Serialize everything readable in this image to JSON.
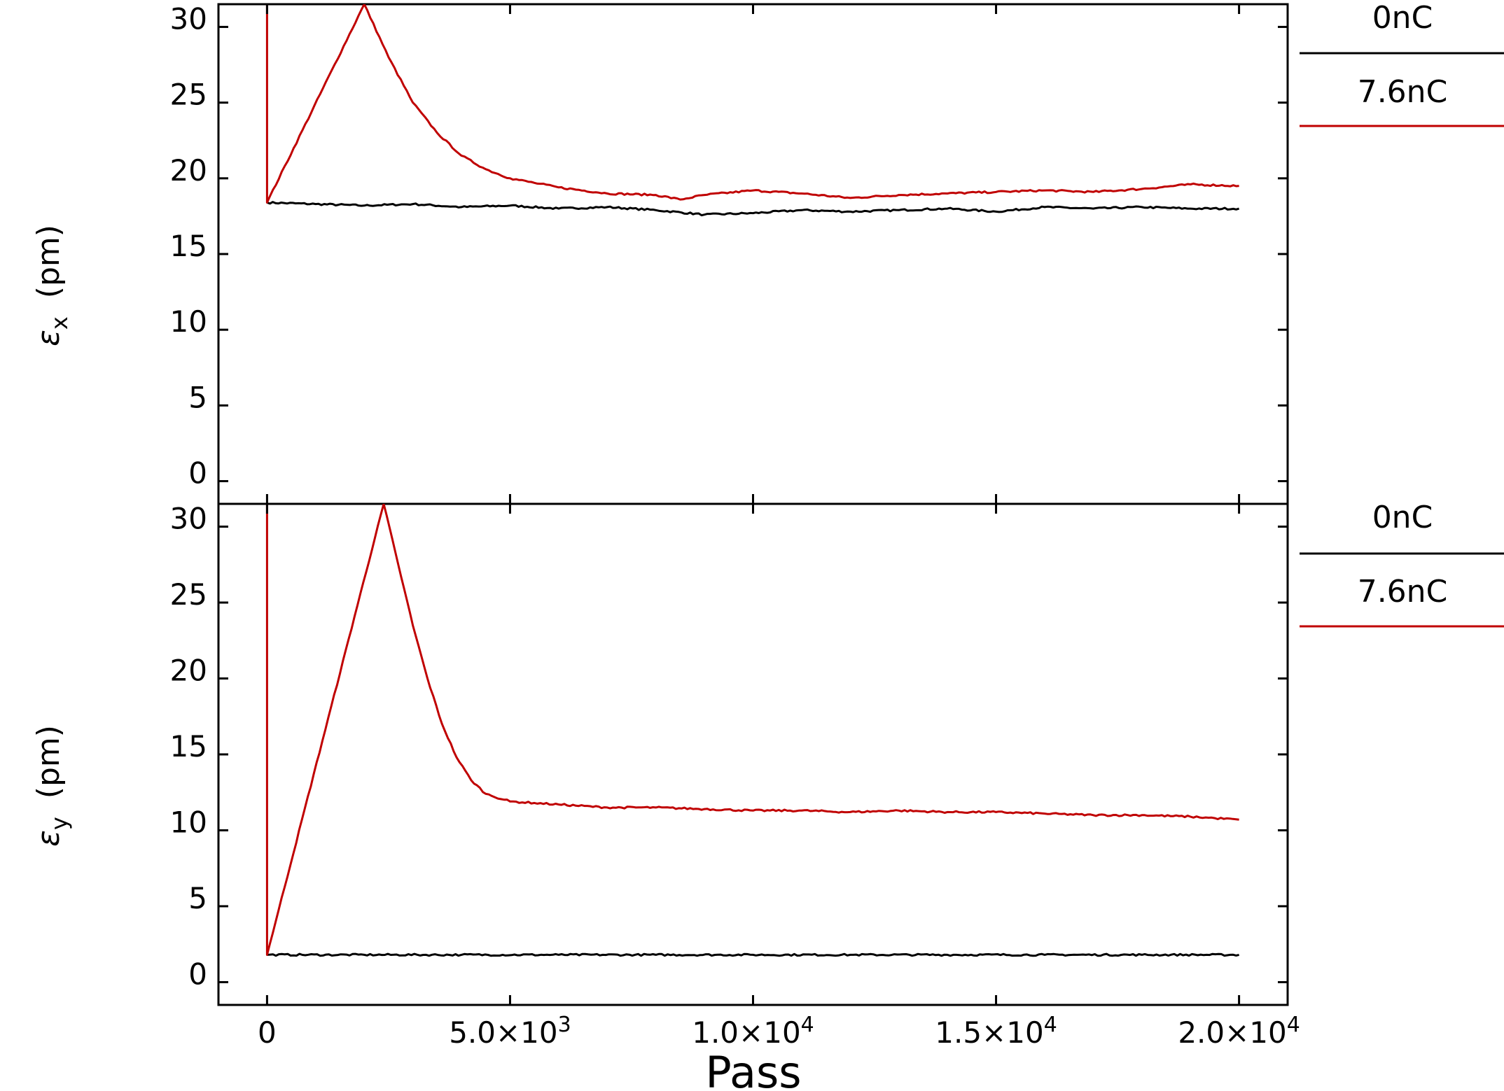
{
  "chart_data": [
    {
      "type": "line",
      "panel": "top",
      "title": "",
      "ylabel": "ε",
      "ylabel_sub": "x",
      "ylabel_unit": "(pm)",
      "xlim": [
        -1000,
        21000
      ],
      "ylim": [
        -1.5,
        31.5
      ],
      "yticks": [
        0,
        5,
        10,
        15,
        20,
        25,
        30
      ],
      "ytick_labels": [
        "0",
        "5",
        "10",
        "15",
        "20",
        "25",
        "30"
      ],
      "grid": false,
      "legend_position": "outside-right",
      "series": [
        {
          "name": "0nC",
          "color": "#000000",
          "x": [
            0,
            1000,
            2000,
            3000,
            4000,
            5000,
            6000,
            7000,
            8000,
            9000,
            10000,
            11000,
            12000,
            13000,
            14000,
            15000,
            16000,
            17000,
            18000,
            19000,
            20000
          ],
          "y": [
            18.4,
            18.3,
            18.2,
            18.3,
            18.1,
            18.2,
            18.0,
            18.1,
            17.9,
            17.6,
            17.7,
            17.9,
            17.8,
            17.9,
            18.0,
            17.8,
            18.1,
            18.0,
            18.1,
            18.0,
            18.0
          ]
        },
        {
          "name": "7.6nC",
          "color": "#c00000",
          "x": [
            0,
            0,
            2000,
            2500,
            3000,
            3500,
            4000,
            4500,
            5000,
            5500,
            6000,
            7000,
            8000,
            8500,
            9000,
            10000,
            11000,
            12000,
            13000,
            14000,
            15000,
            16000,
            17000,
            18000,
            19000,
            20000
          ],
          "y": [
            31.5,
            18.4,
            31.5,
            28.0,
            25.0,
            23.0,
            21.5,
            20.6,
            20.0,
            19.7,
            19.4,
            19.0,
            18.9,
            18.6,
            18.9,
            19.2,
            19.0,
            18.7,
            18.9,
            19.0,
            19.1,
            19.2,
            19.1,
            19.3,
            19.6,
            19.5
          ]
        }
      ]
    },
    {
      "type": "line",
      "panel": "bottom",
      "title": "",
      "xlabel": "Pass",
      "ylabel": "ε",
      "ylabel_sub": "y",
      "ylabel_unit": "(pm)",
      "xlim": [
        -1000,
        21000
      ],
      "ylim": [
        -1.5,
        31.5
      ],
      "xticks": [
        0,
        5000,
        10000,
        15000,
        20000
      ],
      "xtick_labels": [
        {
          "mant": "0",
          "exp": ""
        },
        {
          "mant": "5.0×10",
          "exp": "3"
        },
        {
          "mant": "1.0×10",
          "exp": "4"
        },
        {
          "mant": "1.5×10",
          "exp": "4"
        },
        {
          "mant": "2.0×10",
          "exp": "4"
        }
      ],
      "yticks": [
        0,
        5,
        10,
        15,
        20,
        25,
        30
      ],
      "ytick_labels": [
        "0",
        "5",
        "10",
        "15",
        "20",
        "25",
        "30"
      ],
      "grid": false,
      "legend_position": "outside-right",
      "series": [
        {
          "name": "0nC",
          "color": "#000000",
          "x": [
            0,
            2000,
            4000,
            6000,
            8000,
            10000,
            12000,
            14000,
            16000,
            18000,
            20000
          ],
          "y": [
            1.8,
            1.8,
            1.8,
            1.8,
            1.8,
            1.8,
            1.8,
            1.8,
            1.8,
            1.8,
            1.8
          ]
        },
        {
          "name": "7.6nC",
          "color": "#c00000",
          "x": [
            0,
            0,
            2400,
            2700,
            3000,
            3300,
            3600,
            3900,
            4200,
            4500,
            5000,
            5500,
            6000,
            7000,
            8000,
            9000,
            10000,
            11000,
            12000,
            13000,
            14000,
            15000,
            16000,
            17000,
            18000,
            19000,
            19500,
            20000
          ],
          "y": [
            31.5,
            1.8,
            31.5,
            27.5,
            23.5,
            20.0,
            17.0,
            14.8,
            13.3,
            12.4,
            11.9,
            11.8,
            11.7,
            11.5,
            11.5,
            11.4,
            11.3,
            11.3,
            11.2,
            11.3,
            11.2,
            11.2,
            11.1,
            11.0,
            11.0,
            10.9,
            10.8,
            10.7
          ]
        }
      ]
    }
  ]
}
